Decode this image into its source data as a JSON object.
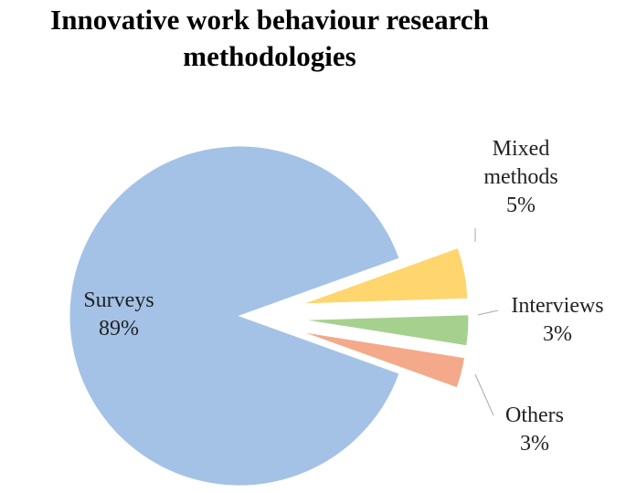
{
  "chart_data": {
    "type": "pie",
    "title": "Innovative work behaviour research methodologies",
    "categories": [
      "Surveys",
      "Mixed methods",
      "Interviews",
      "Others"
    ],
    "values": [
      89,
      5,
      3,
      3
    ],
    "value_labels": [
      "89%",
      "5%",
      "3%",
      "3%"
    ],
    "colors": [
      "#a4c2e6",
      "#ffd56e",
      "#a6d08e",
      "#f4a98a"
    ]
  }
}
